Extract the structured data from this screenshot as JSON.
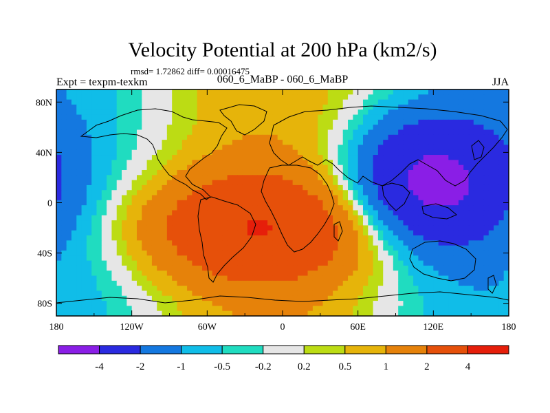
{
  "chart_data": {
    "type": "heatmap",
    "title": "Velocity Potential at 200 hPa (km2/s)",
    "stats_text": "rmsd= 1.72862 diff= 0.00016475",
    "left_label": "Expt = texpm-texkm",
    "center_label": "060_6_MaBP - 060_6_MaBP",
    "right_label": "JJA",
    "x_ticks": [
      {
        "value": -180,
        "label": "180"
      },
      {
        "value": -120,
        "label": "120W"
      },
      {
        "value": -60,
        "label": "60W"
      },
      {
        "value": 0,
        "label": "0"
      },
      {
        "value": 60,
        "label": "60E"
      },
      {
        "value": 120,
        "label": "120E"
      },
      {
        "value": 180,
        "label": "180"
      }
    ],
    "y_ticks": [
      {
        "value": 80,
        "label": "80N"
      },
      {
        "value": 40,
        "label": "40N"
      },
      {
        "value": 0,
        "label": "0"
      },
      {
        "value": -40,
        "label": "40S"
      },
      {
        "value": -80,
        "label": "80S"
      }
    ],
    "xlim": [
      -180,
      180
    ],
    "ylim": [
      -90,
      90
    ],
    "contour_levels": [
      "-4",
      "-2",
      "-1",
      "-0.5",
      "-0.2",
      "0.2",
      "0.5",
      "1",
      "2",
      "4"
    ],
    "colors": [
      "#8a1ee6",
      "#2a2ae0",
      "#1478e0",
      "#10bde8",
      "#20dcc0",
      "#e6e6e6",
      "#bcdc14",
      "#e6b40a",
      "#e6820a",
      "#e6500a",
      "#e61e0a"
    ],
    "features": [
      {
        "name": "positive-center",
        "lon": -20,
        "lat": -20,
        "peak": 3.2,
        "spread_lon": 70,
        "spread_lat": 30
      },
      {
        "name": "negative-center",
        "lon": 115,
        "lat": 15,
        "peak": -4.3,
        "spread_lon": 45,
        "spread_lat": 35
      }
    ]
  }
}
